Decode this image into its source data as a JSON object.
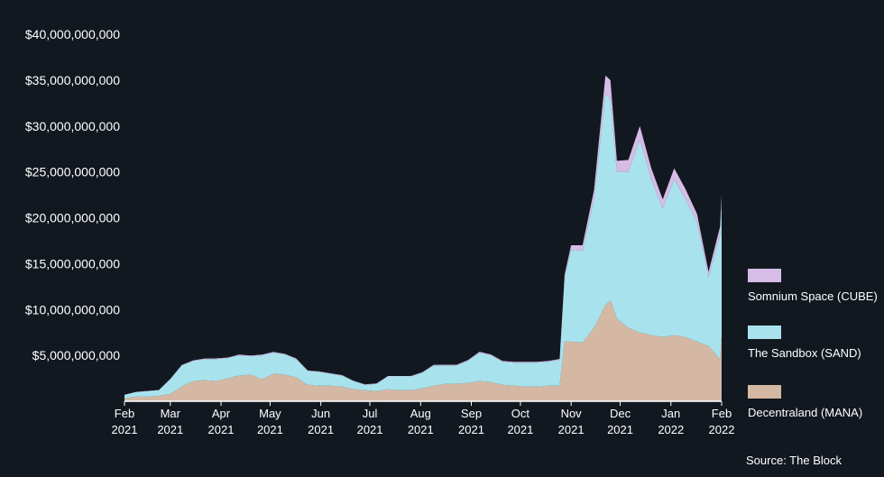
{
  "chart_data": {
    "type": "area",
    "stacked": true,
    "title": "",
    "xlabel": "",
    "ylabel": "",
    "ylim": [
      0,
      40000000000
    ],
    "yticks": [
      "$5,000,000,000",
      "$10,000,000,000",
      "$15,000,000,000",
      "$20,000,000,000",
      "$25,000,000,000",
      "$30,000,000,000",
      "$35,000,000,000",
      "$40,000,000,000"
    ],
    "ytick_values": [
      5000000000,
      10000000000,
      15000000000,
      20000000000,
      25000000000,
      30000000000,
      35000000000,
      40000000000
    ],
    "xticks": [
      {
        "month": "Feb",
        "year": "2021"
      },
      {
        "month": "Mar",
        "year": "2021"
      },
      {
        "month": "Apr",
        "year": "2021"
      },
      {
        "month": "May",
        "year": "2021"
      },
      {
        "month": "Jun",
        "year": "2021"
      },
      {
        "month": "Jul",
        "year": "2021"
      },
      {
        "month": "Aug",
        "year": "2021"
      },
      {
        "month": "Sep",
        "year": "2021"
      },
      {
        "month": "Oct",
        "year": "2021"
      },
      {
        "month": "Nov",
        "year": "2021"
      },
      {
        "month": "Dec",
        "year": "2021"
      },
      {
        "month": "Jan",
        "year": "2022"
      },
      {
        "month": "Feb",
        "year": "2022"
      }
    ],
    "x": [
      "2021-02-01",
      "2021-02-08",
      "2021-02-15",
      "2021-02-22",
      "2021-03-01",
      "2021-03-08",
      "2021-03-15",
      "2021-03-22",
      "2021-03-29",
      "2021-04-05",
      "2021-04-12",
      "2021-04-19",
      "2021-04-26",
      "2021-05-03",
      "2021-05-10",
      "2021-05-17",
      "2021-05-24",
      "2021-05-31",
      "2021-06-07",
      "2021-06-14",
      "2021-06-21",
      "2021-06-28",
      "2021-07-05",
      "2021-07-12",
      "2021-07-19",
      "2021-07-26",
      "2021-08-02",
      "2021-08-09",
      "2021-08-16",
      "2021-08-23",
      "2021-08-30",
      "2021-09-06",
      "2021-09-13",
      "2021-09-20",
      "2021-09-27",
      "2021-10-04",
      "2021-10-11",
      "2021-10-18",
      "2021-10-25",
      "2021-10-28",
      "2021-11-01",
      "2021-11-08",
      "2021-11-15",
      "2021-11-22",
      "2021-11-25",
      "2021-11-29",
      "2021-12-06",
      "2021-12-13",
      "2021-12-20",
      "2021-12-27",
      "2022-01-03",
      "2022-01-10",
      "2022-01-17",
      "2022-01-24",
      "2022-01-31",
      "2022-02-01"
    ],
    "series": [
      {
        "name": "Decentraland (MANA)",
        "color": "#d4b8a4",
        "values": [
          0.3,
          0.5,
          0.5,
          0.6,
          0.8,
          1.6,
          2.2,
          2.3,
          2.2,
          2.5,
          2.8,
          2.9,
          2.4,
          3.0,
          2.9,
          2.6,
          1.8,
          1.7,
          1.7,
          1.6,
          1.3,
          1.2,
          1.1,
          1.3,
          1.2,
          1.2,
          1.4,
          1.7,
          1.9,
          1.9,
          2.0,
          2.2,
          2.1,
          1.8,
          1.7,
          1.6,
          1.6,
          1.7,
          1.7,
          6.5,
          6.5,
          6.4,
          8.0,
          10.5,
          11.0,
          9.0,
          8.0,
          7.5,
          7.2,
          7.0,
          7.2,
          7.0,
          6.5,
          6.0,
          4.6,
          7.0
        ]
      },
      {
        "name": "The Sandbox (SAND)",
        "color": "#a8e3ed",
        "values": [
          0.4,
          0.5,
          0.6,
          0.6,
          1.6,
          2.3,
          2.2,
          2.3,
          2.4,
          2.2,
          2.2,
          2.0,
          2.6,
          2.3,
          2.2,
          2.0,
          1.5,
          1.5,
          1.3,
          1.2,
          0.9,
          0.6,
          0.8,
          1.4,
          1.5,
          1.5,
          1.7,
          2.2,
          2.0,
          2.0,
          2.4,
          3.1,
          2.9,
          2.5,
          2.5,
          2.6,
          2.6,
          2.6,
          2.8,
          7.0,
          10.0,
          10.0,
          14.0,
          23.0,
          22.0,
          16.0,
          17.0,
          21.0,
          17.0,
          14.0,
          17.0,
          15.0,
          13.0,
          7.5,
          13.5,
          14.5
        ]
      },
      {
        "name": "Somnium Space (CUBE)",
        "color": "#d6bce6",
        "values": [
          0.02,
          0.02,
          0.03,
          0.03,
          0.05,
          0.05,
          0.06,
          0.06,
          0.07,
          0.07,
          0.08,
          0.08,
          0.08,
          0.08,
          0.07,
          0.07,
          0.05,
          0.05,
          0.05,
          0.05,
          0.04,
          0.04,
          0.04,
          0.05,
          0.05,
          0.05,
          0.06,
          0.07,
          0.08,
          0.08,
          0.09,
          0.1,
          0.1,
          0.09,
          0.09,
          0.09,
          0.09,
          0.1,
          0.11,
          0.3,
          0.5,
          0.6,
          1.0,
          2.0,
          2.0,
          1.2,
          1.3,
          1.5,
          1.2,
          1.0,
          1.2,
          1.1,
          0.9,
          0.6,
          0.9,
          1.0
        ]
      }
    ],
    "value_unit_note": "values in billions of USD, stacked",
    "legend": {
      "placement": "right",
      "order": [
        "Somnium Space (CUBE)",
        "The Sandbox (SAND)",
        "Decentraland (MANA)"
      ]
    },
    "grid": false
  },
  "source": "Source: The Block",
  "colors": {
    "background": "#121820",
    "text": "#ffffff",
    "axis": "#ffffff"
  }
}
